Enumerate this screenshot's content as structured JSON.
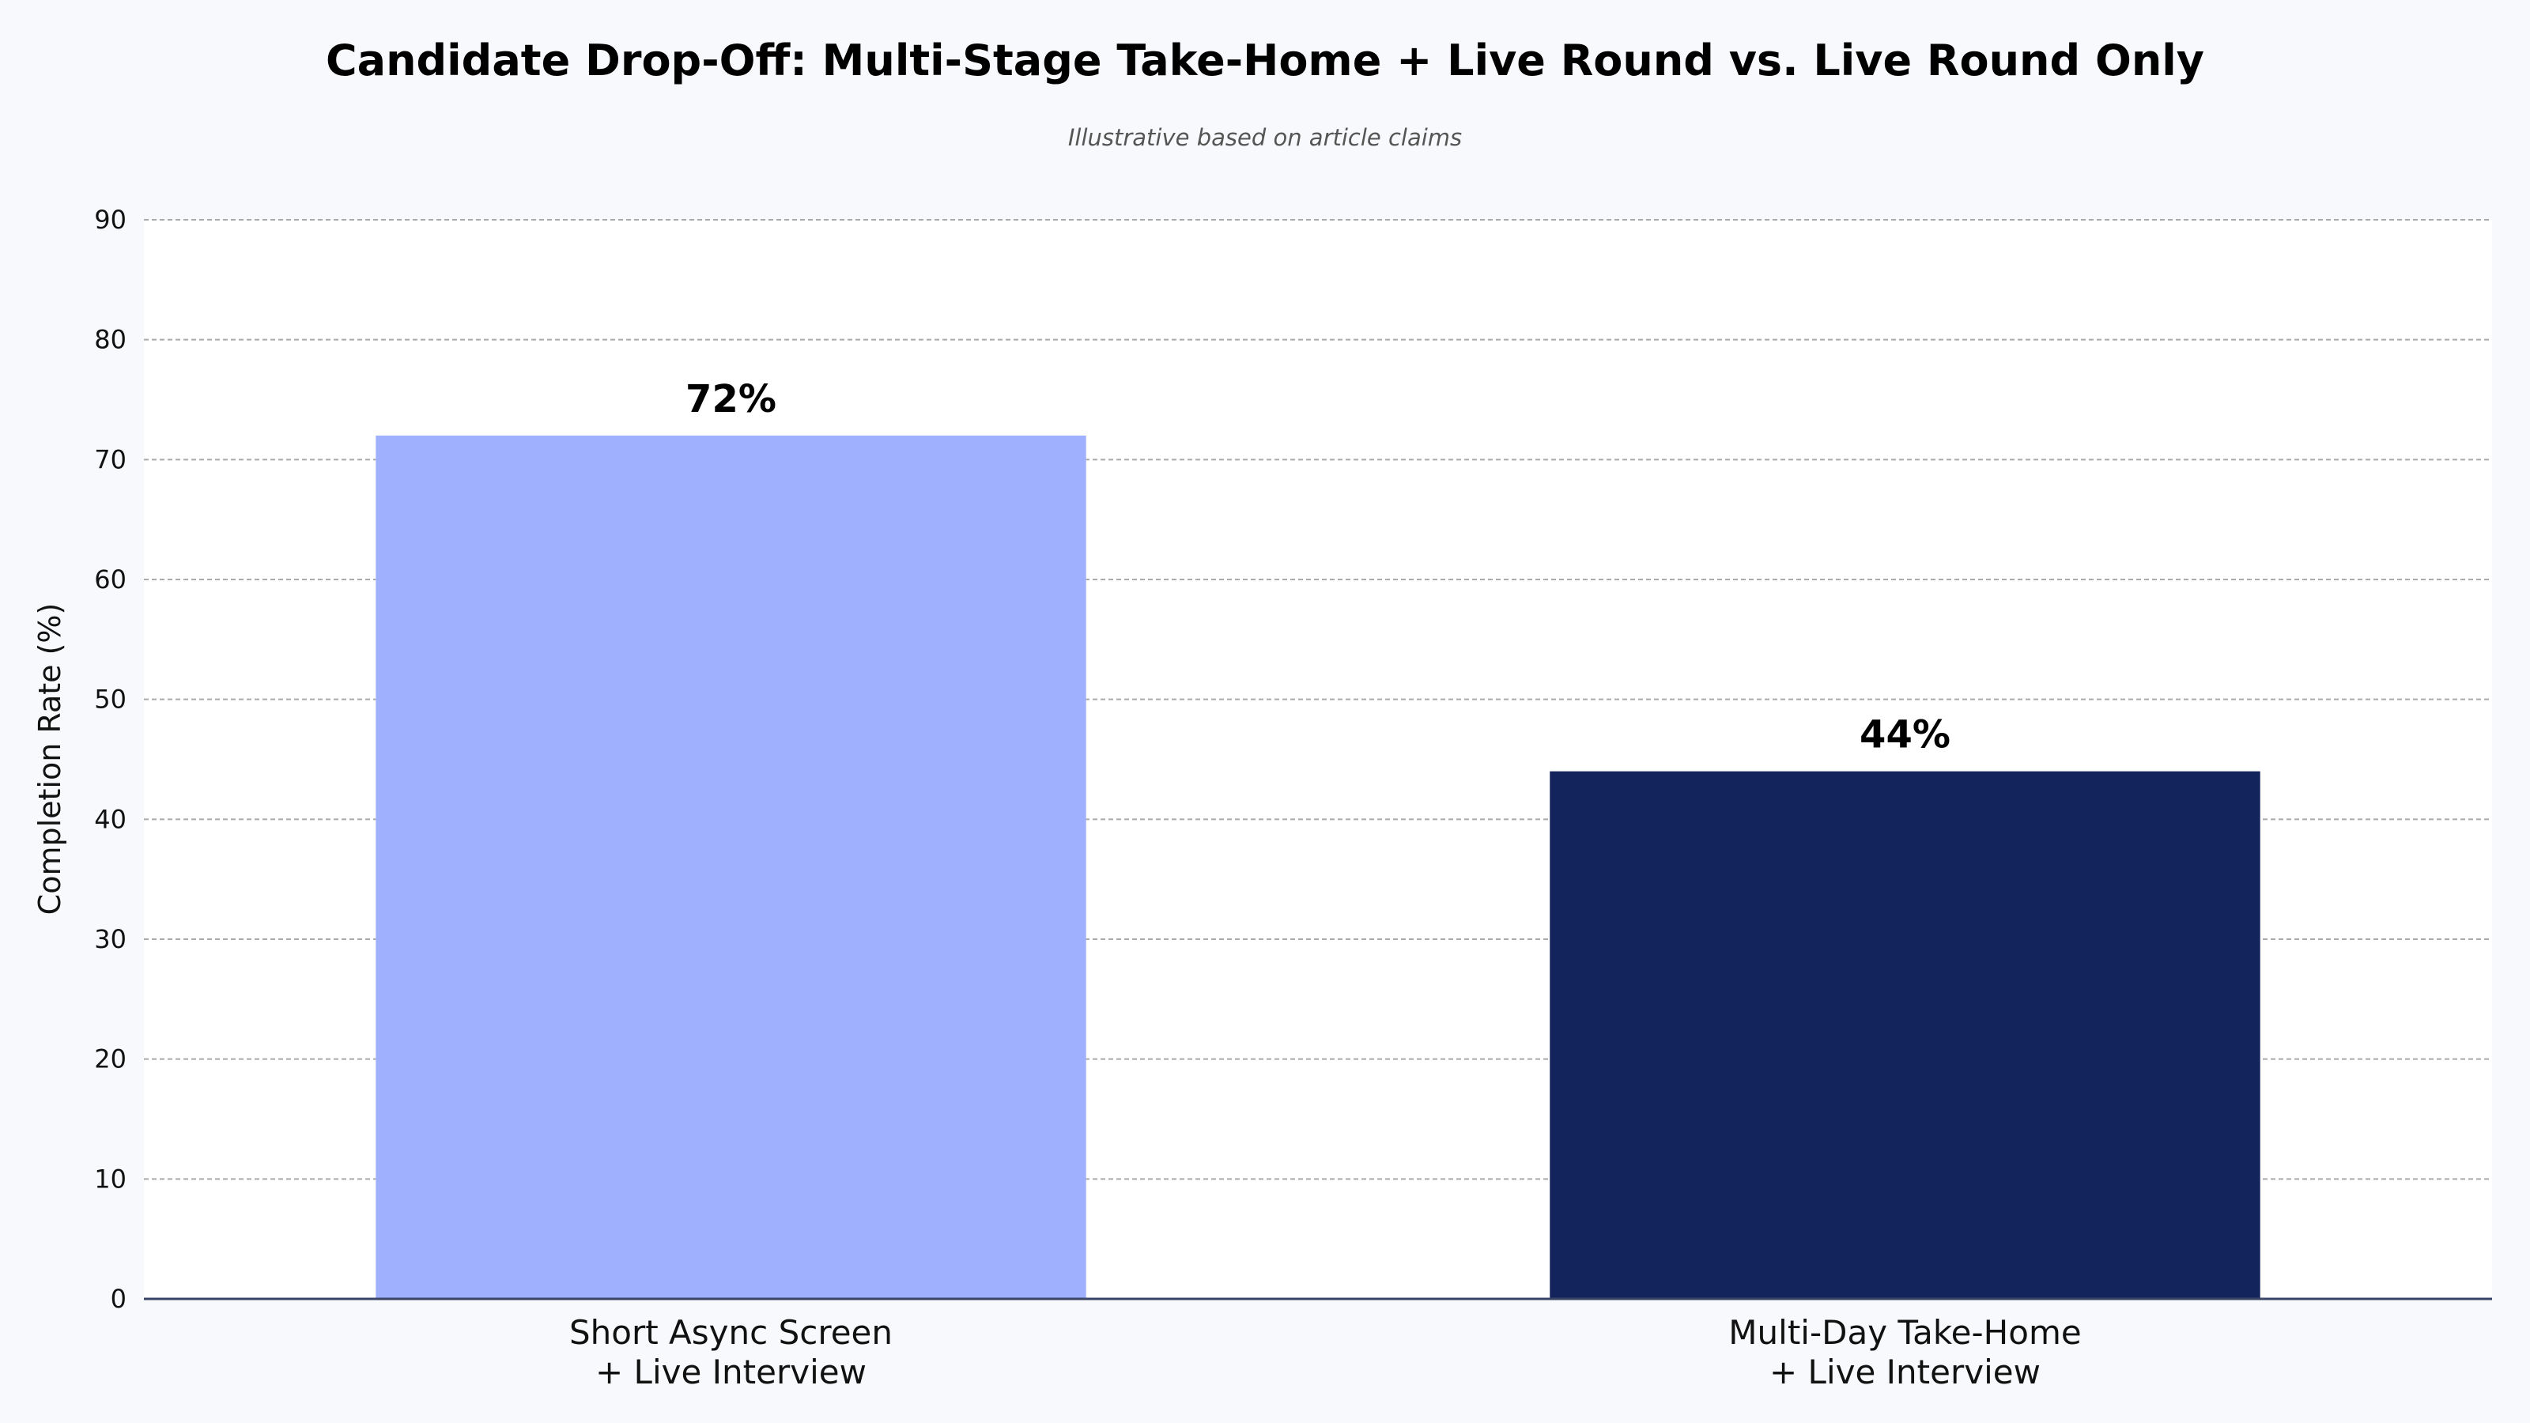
{
  "chart_data": {
    "type": "bar",
    "title": "Candidate Drop-Off: Multi-Stage Take-Home + Live Round vs. Live Round Only",
    "subtitle": "Illustrative based on article claims",
    "xlabel": "",
    "ylabel": "Completion Rate (%)",
    "ylim": [
      0,
      90
    ],
    "yticks": [
      0,
      10,
      20,
      30,
      40,
      50,
      60,
      70,
      80,
      90
    ],
    "grid": true,
    "categories": [
      [
        "Short Async Screen",
        "+ Live Interview"
      ],
      [
        "Multi-Day Take-Home",
        "+ Live Interview"
      ]
    ],
    "values": [
      72,
      44
    ],
    "value_labels": [
      "72%",
      "44%"
    ],
    "colors": [
      "#9fb1fe",
      "#13235c"
    ],
    "plot_background": "#ffffff",
    "page_background": "#f7f9fc"
  }
}
